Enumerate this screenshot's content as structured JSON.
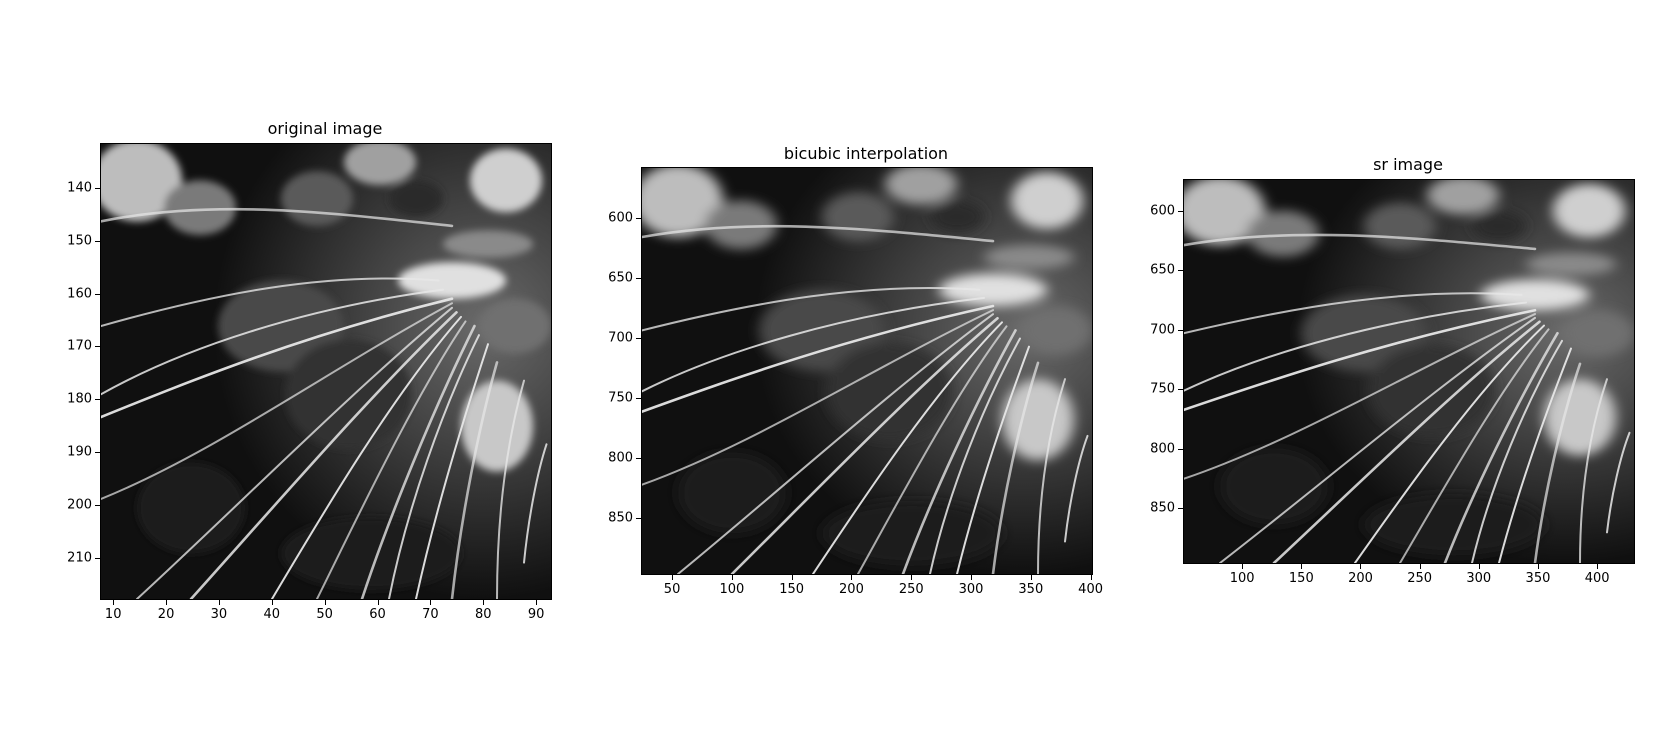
{
  "panels": [
    {
      "title": "original image",
      "x_ticks": [
        "10",
        "20",
        "30",
        "40",
        "50",
        "60",
        "70",
        "80",
        "90"
      ],
      "y_ticks": [
        "140",
        "150",
        "160",
        "170",
        "180",
        "190",
        "200",
        "210"
      ],
      "x_range": [
        7.5,
        93.0
      ],
      "y_range": [
        131.5,
        218.0
      ]
    },
    {
      "title": "bicubic interpolation",
      "x_ticks": [
        "50",
        "100",
        "150",
        "200",
        "250",
        "300",
        "350",
        "400"
      ],
      "y_ticks": [
        "600",
        "650",
        "700",
        "750",
        "800",
        "850"
      ],
      "x_range": [
        24,
        402
      ],
      "y_range": [
        557,
        898
      ]
    },
    {
      "title": "sr image",
      "x_ticks": [
        "100",
        "150",
        "200",
        "250",
        "300",
        "350",
        "400"
      ],
      "y_ticks": [
        "600",
        "650",
        "700",
        "750",
        "800",
        "850"
      ],
      "x_range": [
        50,
        432
      ],
      "y_range": [
        573,
        897
      ]
    }
  ],
  "palette": {
    "background": "#ffffff",
    "frame": "#000000",
    "image_dark": "#0e0e0e"
  }
}
